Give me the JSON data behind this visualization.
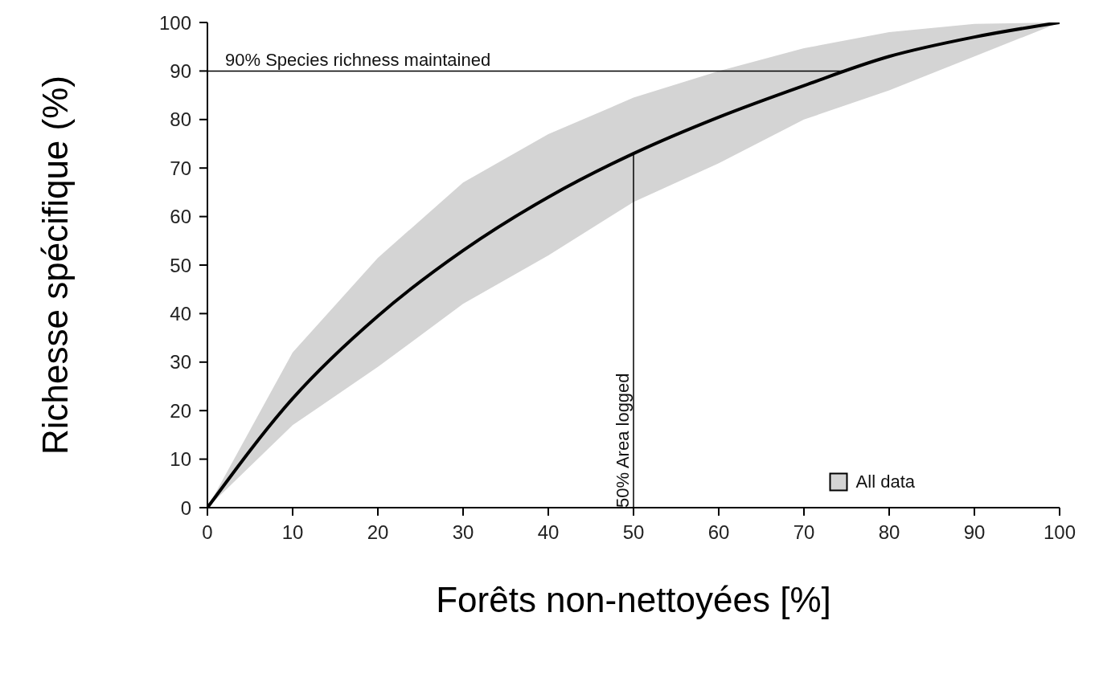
{
  "chart_data": {
    "type": "line",
    "xlabel": "Forêts non-nettoyées [%]",
    "ylabel": "Richesse spécifique (%)",
    "x": [
      0,
      10,
      20,
      30,
      40,
      50,
      60,
      70,
      80,
      90,
      100
    ],
    "series": [
      {
        "name": "All data",
        "color": "#000000",
        "values": [
          0,
          22.5,
          39.5,
          53,
          64,
          73,
          80.5,
          87,
          93,
          97,
          100
        ],
        "lower": [
          0,
          17,
          29,
          42,
          52,
          63,
          71,
          80,
          86,
          93,
          100
        ],
        "upper": [
          0,
          32,
          51.5,
          67,
          77,
          84.5,
          90,
          94.7,
          98,
          99.7,
          100
        ]
      }
    ],
    "xlim": [
      0,
      100
    ],
    "xticks": [
      0,
      10,
      20,
      30,
      40,
      50,
      60,
      70,
      80,
      90,
      100
    ],
    "ylim": [
      0,
      100
    ],
    "yticks": [
      0,
      10,
      20,
      30,
      40,
      50,
      60,
      70,
      80,
      90,
      100
    ],
    "ref_lines": [
      {
        "axis": "y",
        "value": 90,
        "label": "90% Species richness maintained"
      },
      {
        "axis": "x",
        "value": 50,
        "label": "50% Area logged"
      }
    ],
    "grid": false,
    "legend": "bottom right",
    "marker": "none",
    "line_style": "solid"
  }
}
